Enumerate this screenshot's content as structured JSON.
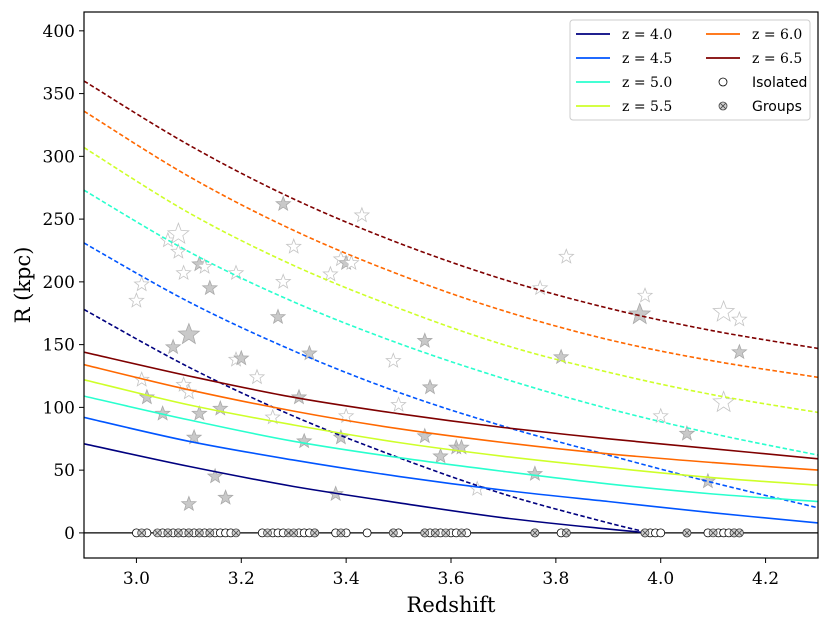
{
  "chart_data": {
    "type": "line",
    "title": "",
    "xlabel": "Redshift",
    "ylabel": "R (kpc)",
    "xlim": [
      2.9,
      4.3
    ],
    "ylim": [
      -20,
      415
    ],
    "xticks": [
      3.0,
      3.2,
      3.4,
      3.6,
      3.8,
      4.0,
      4.2
    ],
    "xtick_labels": [
      "3.0",
      "3.2",
      "3.4",
      "3.6",
      "3.8",
      "4.0",
      "4.2"
    ],
    "yticks": [
      0,
      50,
      100,
      150,
      200,
      250,
      300,
      350,
      400
    ],
    "ytick_labels": [
      "0",
      "50",
      "100",
      "150",
      "200",
      "250",
      "300",
      "350",
      "400"
    ],
    "grid": false,
    "legend_position": "top-right",
    "series": [
      {
        "name": "z = 4.0",
        "color": "#00007f",
        "solid_x": [
          2.9,
          3.1,
          3.3,
          3.5,
          3.7,
          3.9,
          3.98
        ],
        "solid_y": [
          71,
          53,
          37,
          24,
          12,
          3,
          0
        ],
        "dashed_x": [
          2.9,
          3.1,
          3.3,
          3.5,
          3.7,
          3.9,
          3.98
        ],
        "dashed_y": [
          178,
          132,
          93,
          60,
          31,
          8,
          0
        ]
      },
      {
        "name": "z = 4.5",
        "color": "#0055ff",
        "solid_x": [
          2.9,
          3.1,
          3.3,
          3.5,
          3.7,
          3.9,
          4.1,
          4.3
        ],
        "solid_y": [
          92,
          73,
          58,
          45,
          34,
          25,
          16,
          8
        ],
        "dashed_x": [
          2.9,
          3.1,
          3.3,
          3.5,
          3.7,
          3.9,
          4.1,
          4.3
        ],
        "dashed_y": [
          231,
          184,
          145,
          112,
          85,
          62,
          40,
          20
        ]
      },
      {
        "name": "z = 5.0",
        "color": "#29ffce",
        "solid_x": [
          2.9,
          3.1,
          3.3,
          3.5,
          3.7,
          3.9,
          4.1,
          4.3
        ],
        "solid_y": [
          109,
          90,
          73,
          60,
          49,
          39,
          31,
          25
        ],
        "dashed_x": [
          2.9,
          3.1,
          3.3,
          3.5,
          3.7,
          3.9,
          4.1,
          4.3
        ],
        "dashed_y": [
          273,
          224,
          184,
          151,
          123,
          99,
          79,
          62
        ]
      },
      {
        "name": "z = 5.5",
        "color": "#ceff29",
        "solid_x": [
          2.9,
          3.1,
          3.3,
          3.5,
          3.7,
          3.9,
          4.1,
          4.3
        ],
        "solid_y": [
          122,
          102,
          86,
          72,
          61,
          52,
          44,
          38
        ],
        "dashed_x": [
          2.9,
          3.1,
          3.3,
          3.5,
          3.7,
          3.9,
          4.1,
          4.3
        ],
        "dashed_y": [
          307,
          255,
          213,
          179,
          150,
          128,
          110,
          96
        ]
      },
      {
        "name": "z = 6.0",
        "color": "#ff6800",
        "solid_x": [
          2.9,
          3.1,
          3.3,
          3.5,
          3.7,
          3.9,
          4.1,
          4.3
        ],
        "solid_y": [
          134,
          114,
          97,
          83,
          72,
          63,
          56,
          50
        ],
        "dashed_x": [
          2.9,
          3.1,
          3.3,
          3.5,
          3.7,
          3.9,
          4.1,
          4.3
        ],
        "dashed_y": [
          336,
          284,
          241,
          206,
          177,
          154,
          137,
          124
        ]
      },
      {
        "name": "z = 6.5",
        "color": "#7f0000",
        "solid_x": [
          2.9,
          3.1,
          3.3,
          3.5,
          3.7,
          3.9,
          4.1,
          4.3
        ],
        "solid_y": [
          144,
          125,
          108,
          95,
          84,
          75,
          67,
          59
        ],
        "dashed_x": [
          2.9,
          3.1,
          3.3,
          3.5,
          3.7,
          3.9,
          4.1,
          4.3
        ],
        "dashed_y": [
          360,
          309,
          266,
          231,
          202,
          179,
          161,
          147
        ]
      }
    ],
    "markers": {
      "isolated": {
        "label": "Isolated",
        "x": [
          3.0,
          3.02,
          3.05,
          3.06,
          3.07,
          3.08,
          3.09,
          3.1,
          3.11,
          3.12,
          3.13,
          3.14,
          3.15,
          3.16,
          3.17,
          3.18,
          3.24,
          3.26,
          3.27,
          3.28,
          3.31,
          3.32,
          3.33,
          3.34,
          3.38,
          3.4,
          3.44,
          3.49,
          3.5,
          3.55,
          3.56,
          3.57,
          3.58,
          3.6,
          3.61,
          3.63,
          3.76,
          3.81,
          3.82,
          3.97,
          3.98,
          3.99,
          4.0,
          4.05,
          4.09,
          4.11,
          4.12,
          4.13,
          4.14,
          4.15
        ],
        "y": [
          0,
          0,
          0,
          0,
          0,
          0,
          0,
          0,
          0,
          0,
          0,
          0,
          0,
          0,
          0,
          0,
          0,
          0,
          0,
          0,
          0,
          0,
          0,
          0,
          0,
          0,
          0,
          0,
          0,
          0,
          0,
          0,
          0,
          0,
          0,
          0,
          0,
          0,
          0,
          0,
          0,
          0,
          0,
          0,
          0,
          0,
          0,
          0,
          0,
          0
        ]
      },
      "groups": {
        "label": "Groups",
        "x": [
          3.01,
          3.04,
          3.06,
          3.08,
          3.1,
          3.12,
          3.14,
          3.19,
          3.25,
          3.29,
          3.3,
          3.34,
          3.39,
          3.49,
          3.55,
          3.57,
          3.59,
          3.62,
          3.76,
          3.82,
          3.97,
          4.05,
          4.1,
          4.14,
          4.15
        ],
        "y": [
          0,
          0,
          0,
          0,
          0,
          0,
          0,
          0,
          0,
          0,
          0,
          0,
          0,
          0,
          0,
          0,
          0,
          0,
          0,
          0,
          0,
          0,
          0,
          0,
          0
        ]
      }
    },
    "stars": {
      "label": "",
      "x": [
        3.0,
        3.01,
        3.02,
        3.01,
        3.05,
        3.06,
        3.07,
        3.08,
        3.08,
        3.09,
        3.09,
        3.1,
        3.1,
        3.1,
        3.11,
        3.12,
        3.12,
        3.13,
        3.14,
        3.15,
        3.16,
        3.17,
        3.19,
        3.19,
        3.2,
        3.23,
        3.26,
        3.27,
        3.28,
        3.28,
        3.3,
        3.31,
        3.32,
        3.33,
        3.37,
        3.38,
        3.39,
        3.39,
        3.4,
        3.4,
        3.41,
        3.43,
        3.49,
        3.5,
        3.55,
        3.55,
        3.56,
        3.58,
        3.61,
        3.62,
        3.65,
        3.76,
        3.77,
        3.81,
        3.82,
        3.96,
        3.97,
        4.0,
        4.05,
        4.09,
        4.12,
        4.12,
        4.15,
        4.15
      ],
      "y": [
        185,
        198,
        108,
        122,
        95,
        233,
        148,
        224,
        238,
        207,
        118,
        112,
        158,
        23,
        76,
        95,
        214,
        212,
        195,
        45,
        99,
        28,
        138,
        207,
        139,
        124,
        92,
        172,
        262,
        200,
        228,
        108,
        73,
        143,
        206,
        31,
        76,
        218,
        93,
        215,
        215,
        253,
        137,
        102,
        153,
        77,
        116,
        61,
        68,
        68,
        35,
        47,
        195,
        140,
        220,
        174,
        189,
        93,
        79,
        41,
        104,
        176,
        144,
        170
      ],
      "size": [
        1,
        1,
        1,
        1,
        1,
        1,
        1,
        1,
        2,
        1,
        1,
        1,
        2,
        1,
        1,
        1,
        1,
        1,
        1,
        1,
        1,
        1,
        1,
        1,
        1,
        1,
        1,
        1,
        1,
        1,
        1,
        1,
        1,
        1,
        1,
        1,
        1,
        1,
        1,
        1,
        1,
        1,
        1,
        1,
        1,
        1,
        1,
        1,
        1,
        1,
        1,
        1,
        1,
        1,
        1,
        2,
        1,
        1,
        1,
        1,
        2,
        2,
        1,
        1
      ],
      "filled": [
        0,
        0,
        1,
        0,
        1,
        0,
        1,
        0,
        0,
        0,
        0,
        0,
        1,
        1,
        1,
        1,
        1,
        0,
        1,
        1,
        1,
        1,
        0,
        0,
        1,
        0,
        0,
        1,
        1,
        0,
        0,
        1,
        1,
        1,
        0,
        1,
        1,
        0,
        0,
        1,
        0,
        0,
        0,
        0,
        1,
        1,
        1,
        1,
        1,
        1,
        0,
        1,
        0,
        1,
        0,
        1,
        0,
        0,
        1,
        1,
        0,
        0,
        1,
        0
      ]
    },
    "legend_entries": [
      {
        "label": "z = 4.0",
        "kind": "line",
        "color": "#00007f"
      },
      {
        "label": "z = 4.5",
        "kind": "line",
        "color": "#0055ff"
      },
      {
        "label": "z = 5.0",
        "kind": "line",
        "color": "#29ffce"
      },
      {
        "label": "z = 5.5",
        "kind": "line",
        "color": "#ceff29"
      },
      {
        "label": "z = 6.0",
        "kind": "line",
        "color": "#ff6800"
      },
      {
        "label": "z = 6.5",
        "kind": "line",
        "color": "#7f0000"
      },
      {
        "label": "Isolated",
        "kind": "circle",
        "color": "#000000"
      },
      {
        "label": "Groups",
        "kind": "cross",
        "color": "#555555"
      }
    ]
  }
}
